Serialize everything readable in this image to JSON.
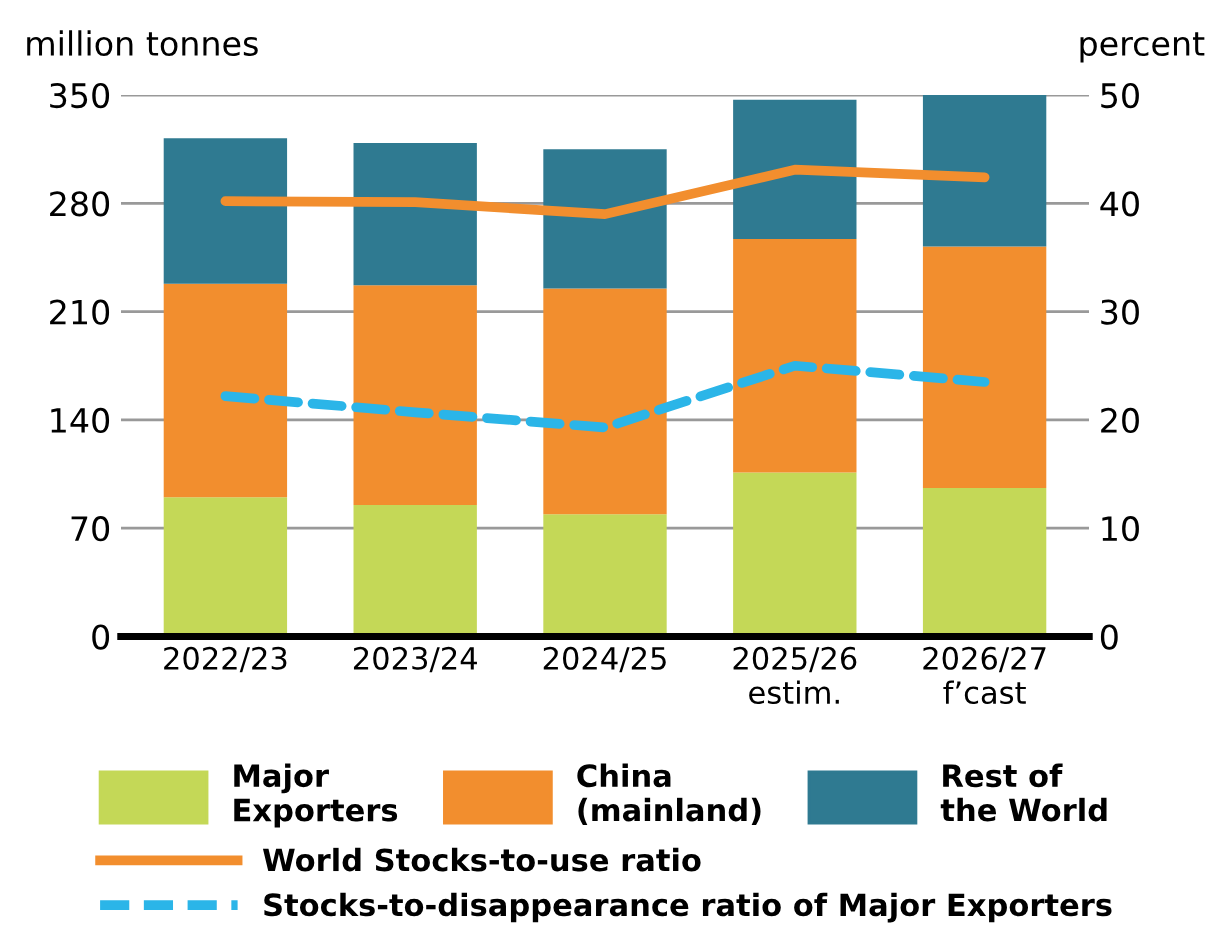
{
  "chart_data": {
    "type": "bar",
    "stacked": true,
    "ylabel": "million tonnes",
    "y2label": "percent",
    "categories": [
      "2022/23",
      "2023/24",
      "2024/25",
      "2025/26\nestim.",
      "2026/27\nf’cast"
    ],
    "series": [
      {
        "name": "Major\nExporters",
        "color": "#c4d857",
        "values": [
          90,
          85,
          79,
          106,
          96
        ]
      },
      {
        "name": "China\n(mainland)",
        "color": "#f28e2e",
        "values": [
          138,
          142,
          146,
          151,
          156
        ]
      },
      {
        "name": "Rest of\nthe World",
        "color": "#2f7a91",
        "values": [
          94,
          92,
          90,
          90,
          98
        ]
      },
      {
        "name": "World Stocks-to-use ratio",
        "type": "line",
        "axis": "y2",
        "color": "#f28e2e",
        "line_style": "solid",
        "values": [
          40.2,
          40.1,
          39.0,
          43.1,
          42.4
        ]
      },
      {
        "name": "Stocks-to-disappearance ratio of Major Exporters",
        "type": "line",
        "axis": "y2",
        "color": "#2bb5e8",
        "line_style": "dashed",
        "values": [
          22.2,
          20.7,
          19.3,
          25.0,
          23.5
        ]
      }
    ],
    "ylim": [
      0,
      350
    ],
    "yticks": [
      0,
      70,
      140,
      210,
      280,
      350
    ],
    "y2lim": [
      0,
      50
    ],
    "y2ticks": [
      0,
      10,
      20,
      30,
      40,
      50
    ],
    "grid": "y",
    "legend": "bottom"
  }
}
